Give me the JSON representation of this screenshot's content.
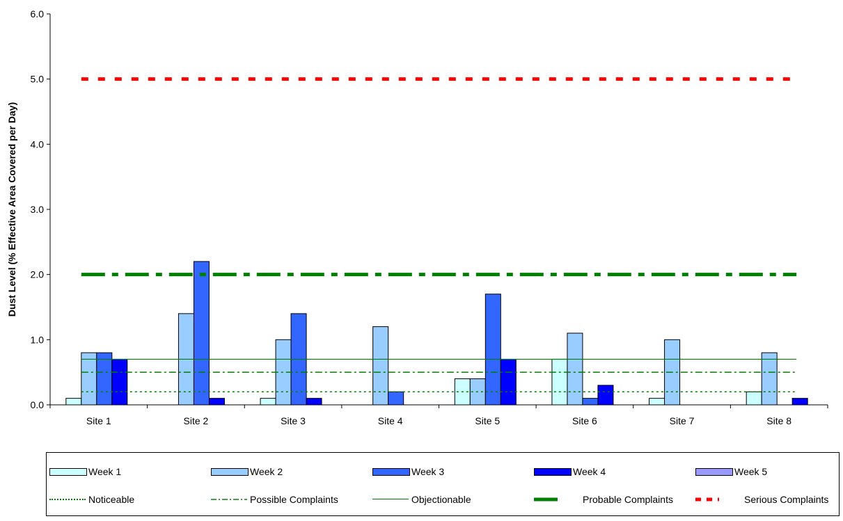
{
  "chart_data": {
    "type": "bar",
    "ylabel": "Dust Level (% Effective Area Covered per Day)",
    "ylim": [
      0,
      6
    ],
    "yticks": [
      "0.0",
      "1.0",
      "2.0",
      "3.0",
      "4.0",
      "5.0",
      "6.0"
    ],
    "categories": [
      "Site 1",
      "Site 2",
      "Site 3",
      "Site 4",
      "Site 5",
      "Site 6",
      "Site 7",
      "Site 8"
    ],
    "series": [
      {
        "name": "Week 1",
        "color": "#ccffff",
        "values": [
          0.1,
          0,
          0.1,
          0,
          0.4,
          0.7,
          0.1,
          0.2
        ]
      },
      {
        "name": "Week 2",
        "color": "#99ccff",
        "values": [
          0.8,
          1.4,
          1.0,
          1.2,
          0.4,
          1.1,
          1.0,
          0.8
        ]
      },
      {
        "name": "Week 3",
        "color": "#3366ff",
        "values": [
          0.8,
          2.2,
          1.4,
          0.2,
          1.7,
          0.1,
          0,
          0
        ]
      },
      {
        "name": "Week 4",
        "color": "#0000ff",
        "values": [
          0.7,
          0.1,
          0.1,
          0,
          0.7,
          0.3,
          0,
          0.1
        ]
      },
      {
        "name": "Week 5",
        "color": "#9999ff",
        "values": [
          0,
          0,
          0,
          0,
          0,
          0,
          0,
          0
        ]
      }
    ],
    "thresholds": [
      {
        "name": "Noticeable",
        "value": 0.2,
        "color": "#008000",
        "style": "dotted"
      },
      {
        "name": "Possible Complaints",
        "value": 0.5,
        "color": "#008000",
        "style": "dash-dot"
      },
      {
        "name": "Objectionable",
        "value": 0.7,
        "color": "#008000",
        "style": "solid"
      },
      {
        "name": "Probable Complaints",
        "value": 2.0,
        "color": "#008000",
        "style": "thick-dash-dot"
      },
      {
        "name": "Serious Complaints",
        "value": 5.0,
        "color": "#ff0000",
        "style": "thick-dotted"
      }
    ],
    "legend_position": "bottom",
    "grid": false
  }
}
